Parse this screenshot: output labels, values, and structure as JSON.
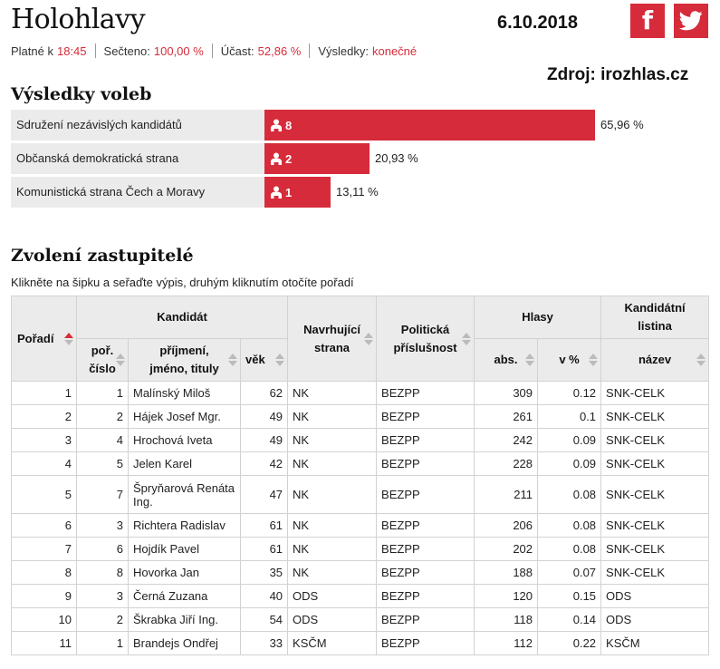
{
  "header": {
    "title": "Holohlavy",
    "date": "6.10.2018",
    "facebook_glyph": "f",
    "source": "Zdroj: irozhlas.cz"
  },
  "meta": {
    "valid_label": "Platné k",
    "valid_value": "18:45",
    "counted_label": "Sečteno:",
    "counted_value": "100,00 %",
    "turnout_label": "Účast:",
    "turnout_value": "52,86 %",
    "results_label": "Výsledky:",
    "results_value": "konečné"
  },
  "colors": {
    "accent": "#d62b3a",
    "label_bg": "#ebebeb"
  },
  "results": {
    "heading": "Výsledky voleb",
    "parties": [
      {
        "name": "Sdružení nezávislých kandidátů",
        "seats": "8",
        "percent": "65,96 %",
        "share": 65.96
      },
      {
        "name": "Občanská demokratická strana",
        "seats": "2",
        "percent": "20,93 %",
        "share": 20.93
      },
      {
        "name": "Komunistická strana Čech a Moravy",
        "seats": "1",
        "percent": "13,11 %",
        "share": 13.11
      }
    ]
  },
  "elected": {
    "heading": "Zvolení zastupitelé",
    "hint": "Klikněte na šipku a seřaďte výpis, druhým kliknutím otočíte pořadí",
    "columns": {
      "order": "Pořadí",
      "candidate": "Kandidát",
      "num_1": "poř.",
      "num_2": "číslo",
      "name_1": "příjmení,",
      "name_2": "jméno, tituly",
      "age": "věk",
      "nominating_1": "Navrhující",
      "nominating_2": "strana",
      "affiliation_1": "Politická",
      "affiliation_2": "příslušnost",
      "votes": "Hlasy",
      "abs": "abs.",
      "pct": "v %",
      "list_1": "Kandidátní",
      "list_2": "listina",
      "list_name": "název"
    },
    "rows": [
      [
        "1",
        "1",
        "Malínský Miloš",
        "62",
        "NK",
        "BEZPP",
        "309",
        "0.12",
        "SNK-CELK"
      ],
      [
        "2",
        "2",
        "Hájek Josef Mgr.",
        "49",
        "NK",
        "BEZPP",
        "261",
        "0.1",
        "SNK-CELK"
      ],
      [
        "3",
        "4",
        "Hrochová Iveta",
        "49",
        "NK",
        "BEZPP",
        "242",
        "0.09",
        "SNK-CELK"
      ],
      [
        "4",
        "5",
        "Jelen Karel",
        "42",
        "NK",
        "BEZPP",
        "228",
        "0.09",
        "SNK-CELK"
      ],
      [
        "5",
        "7",
        "Špryňarová Renáta Ing.",
        "47",
        "NK",
        "BEZPP",
        "211",
        "0.08",
        "SNK-CELK"
      ],
      [
        "6",
        "3",
        "Richtera Radislav",
        "61",
        "NK",
        "BEZPP",
        "206",
        "0.08",
        "SNK-CELK"
      ],
      [
        "7",
        "6",
        "Hojdík Pavel",
        "61",
        "NK",
        "BEZPP",
        "202",
        "0.08",
        "SNK-CELK"
      ],
      [
        "8",
        "8",
        "Hovorka Jan",
        "35",
        "NK",
        "BEZPP",
        "188",
        "0.07",
        "SNK-CELK"
      ],
      [
        "9",
        "3",
        "Černá Zuzana",
        "40",
        "ODS",
        "BEZPP",
        "120",
        "0.15",
        "ODS"
      ],
      [
        "10",
        "2",
        "Škrabka Jiří Ing.",
        "54",
        "ODS",
        "BEZPP",
        "118",
        "0.14",
        "ODS"
      ],
      [
        "11",
        "1",
        "Brandejs Ondřej",
        "33",
        "KSČM",
        "BEZPP",
        "112",
        "0.22",
        "KSČM"
      ]
    ]
  }
}
